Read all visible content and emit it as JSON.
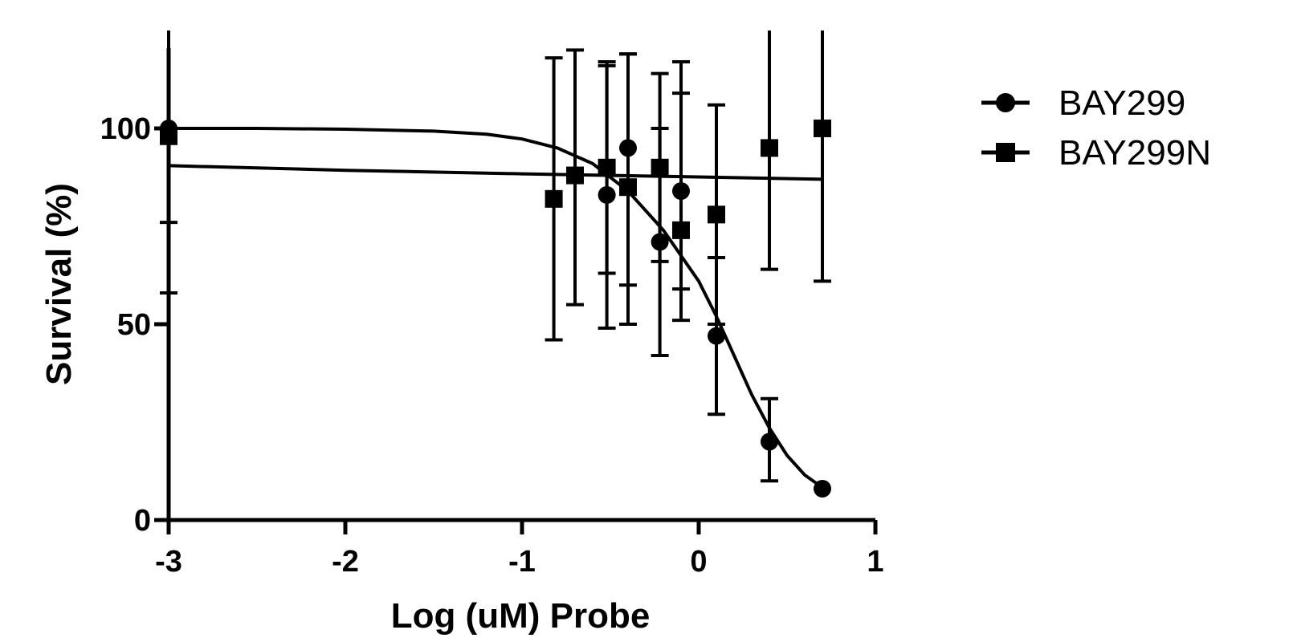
{
  "chart_data": {
    "type": "scatter",
    "title": "",
    "xlabel": "Log (uM) Probe",
    "ylabel": "Survival (%)",
    "xlim": [
      -3,
      1
    ],
    "ylim": [
      0,
      125
    ],
    "xticks": [
      -3,
      -2,
      -1,
      0,
      1
    ],
    "xtick_labels": [
      "-3",
      "-2",
      "-1",
      "0",
      "1"
    ],
    "yticks": [
      0,
      50,
      100
    ],
    "ytick_labels": [
      "0",
      "50",
      "100"
    ],
    "grid": false,
    "legend_position": "top-right",
    "series": [
      {
        "name": "BAY299",
        "marker": "circle",
        "color": "#000000",
        "points": [
          {
            "x": -3.0,
            "y": 100,
            "err_low": 76,
            "err_high": 125
          },
          {
            "x": -0.52,
            "y": 83,
            "err_low": 63,
            "err_high": 116
          },
          {
            "x": -0.4,
            "y": 95,
            "err_low": 60,
            "err_high": 119
          },
          {
            "x": -0.22,
            "y": 71,
            "err_low": 42,
            "err_high": 100
          },
          {
            "x": -0.1,
            "y": 84,
            "err_low": 59,
            "err_high": 109
          },
          {
            "x": 0.1,
            "y": 47,
            "err_low": 27,
            "err_high": 67
          },
          {
            "x": 0.4,
            "y": 20,
            "err_low": 10,
            "err_high": 31
          },
          {
            "x": 0.7,
            "y": 8,
            "err_low": 8,
            "err_high": 8
          }
        ],
        "fit_line": [
          {
            "x": -3.0,
            "y": 100
          },
          {
            "x": -2.5,
            "y": 100
          },
          {
            "x": -2.0,
            "y": 99.8
          },
          {
            "x": -1.5,
            "y": 99.3
          },
          {
            "x": -1.2,
            "y": 98.5
          },
          {
            "x": -1.0,
            "y": 97.3
          },
          {
            "x": -0.8,
            "y": 95.0
          },
          {
            "x": -0.6,
            "y": 91.0
          },
          {
            "x": -0.4,
            "y": 84.0
          },
          {
            "x": -0.2,
            "y": 74.0
          },
          {
            "x": 0.0,
            "y": 61.0
          },
          {
            "x": 0.1,
            "y": 52.0
          },
          {
            "x": 0.2,
            "y": 42.0
          },
          {
            "x": 0.3,
            "y": 32.0
          },
          {
            "x": 0.4,
            "y": 23.5
          },
          {
            "x": 0.5,
            "y": 16.5
          },
          {
            "x": 0.6,
            "y": 11.5
          },
          {
            "x": 0.7,
            "y": 8.3
          }
        ]
      },
      {
        "name": "BAY299N",
        "marker": "square",
        "color": "#000000",
        "points": [
          {
            "x": -3.0,
            "y": 98,
            "err_low": 58,
            "err_high": 125
          },
          {
            "x": -0.82,
            "y": 82,
            "err_low": 46,
            "err_high": 118
          },
          {
            "x": -0.7,
            "y": 88,
            "err_low": 55,
            "err_high": 120
          },
          {
            "x": -0.52,
            "y": 90,
            "err_low": 49,
            "err_high": 117
          },
          {
            "x": -0.4,
            "y": 85,
            "err_low": 50,
            "err_high": 119
          },
          {
            "x": -0.22,
            "y": 90,
            "err_low": 66,
            "err_high": 114
          },
          {
            "x": -0.1,
            "y": 74,
            "err_low": 51,
            "err_high": 117
          },
          {
            "x": 0.1,
            "y": 78,
            "err_low": 50,
            "err_high": 106
          },
          {
            "x": 0.4,
            "y": 95,
            "err_low": 64,
            "err_high": 125
          },
          {
            "x": 0.7,
            "y": 100,
            "err_low": 61,
            "err_high": 125
          }
        ],
        "fit_line": [
          {
            "x": -3.0,
            "y": 90.5
          },
          {
            "x": -2.0,
            "y": 89.3
          },
          {
            "x": -1.0,
            "y": 88.4
          },
          {
            "x": 0.0,
            "y": 87.6
          },
          {
            "x": 0.7,
            "y": 87.0
          }
        ]
      }
    ]
  }
}
